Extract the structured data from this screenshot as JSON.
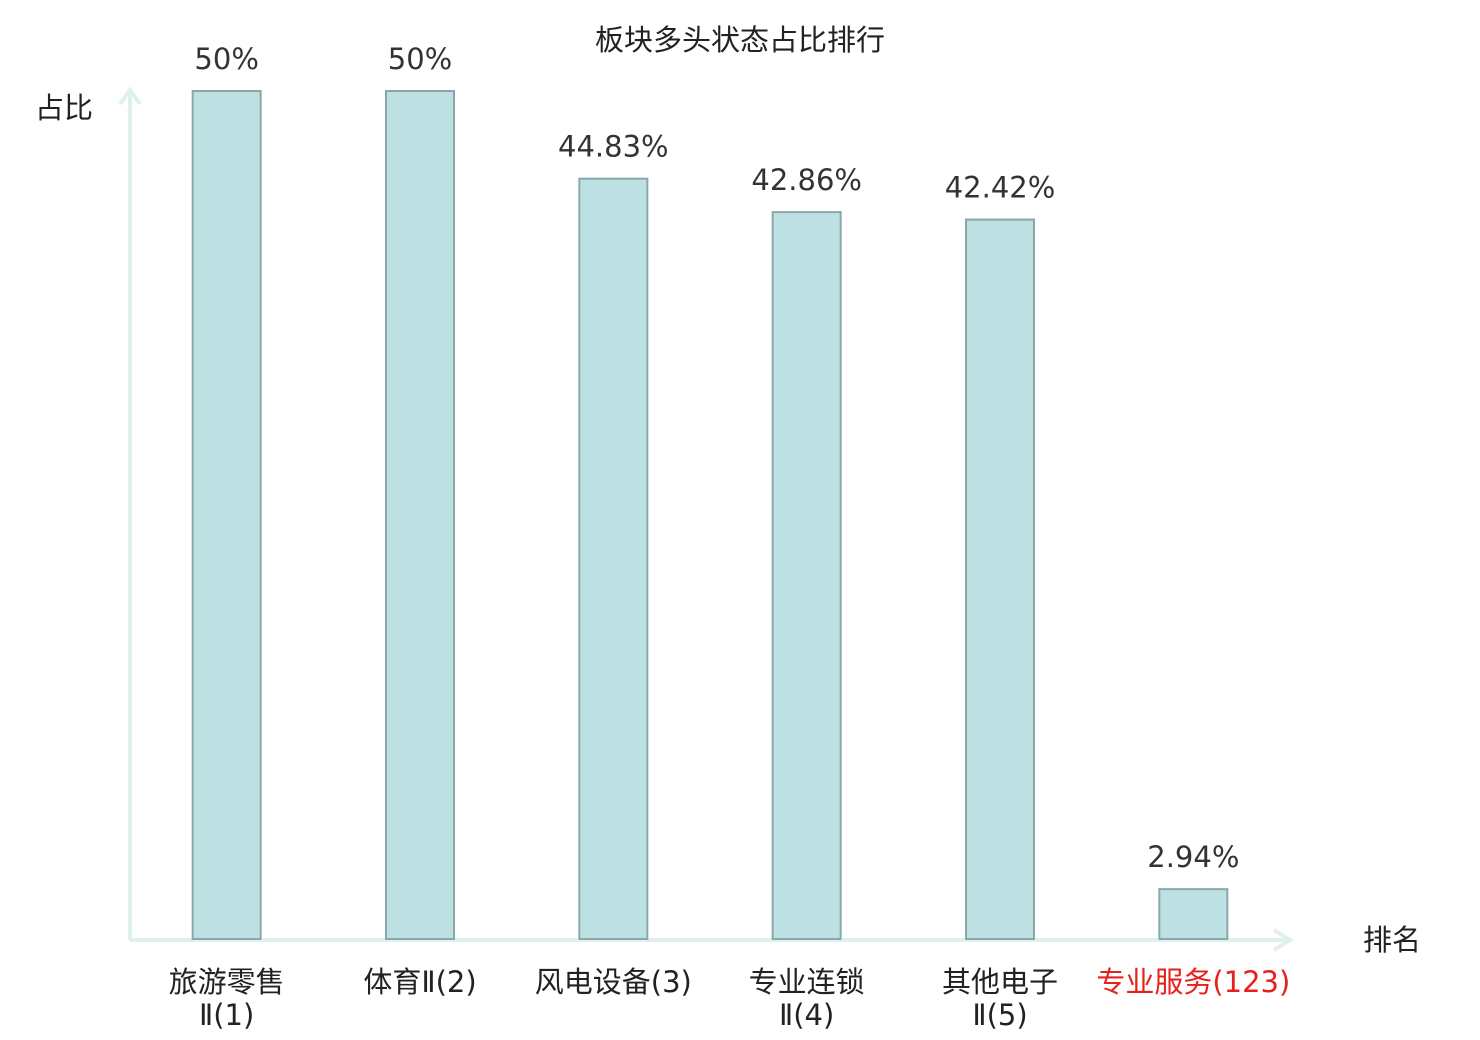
{
  "chart_data": {
    "type": "bar",
    "title": "板块多头状态占比排行",
    "y_label": "占比",
    "x_label": "排名",
    "categories": [
      "旅游零售\nⅡ(1)",
      "体育Ⅱ(2)",
      "风电设备(3)",
      "专业连锁\nⅡ(4)",
      "其他电子\nⅡ(5)",
      "专业服务(123)"
    ],
    "category_colors": [
      "#222222",
      "#222222",
      "#222222",
      "#222222",
      "#222222",
      "#e8201c"
    ],
    "values": [
      50,
      50,
      44.83,
      42.86,
      42.42,
      2.94
    ],
    "value_labels": [
      "50%",
      "50%",
      "44.83%",
      "42.86%",
      "42.42%",
      "2.94%"
    ],
    "color": "#bde0e3",
    "edge_color": "#88a8aa",
    "ylim": [
      0,
      50
    ]
  }
}
